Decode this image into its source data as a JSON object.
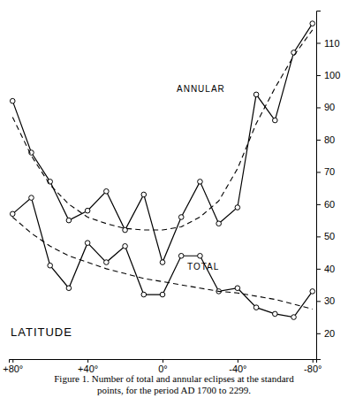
{
  "chart_data": {
    "type": "line",
    "title": "Figure 1. Number of total and annular eclipses at the standard points, for the period AD 1700 to 2299.",
    "x_label": "LATITUDE",
    "x": [
      80,
      70,
      60,
      50,
      40,
      30,
      20,
      10,
      0,
      -10,
      -20,
      -30,
      -40,
      -50,
      -60,
      -70,
      -80
    ],
    "xlim": [
      82,
      -82
    ],
    "xticks": [
      {
        "value": 80,
        "label": "+80°"
      },
      {
        "value": 40,
        "label": "+40°"
      },
      {
        "value": 0,
        "label": "0°"
      },
      {
        "value": -40,
        "label": "-40°"
      },
      {
        "value": -80,
        "label": "-80°"
      }
    ],
    "ylim": [
      12,
      120
    ],
    "yticks": [
      20,
      30,
      40,
      50,
      60,
      70,
      80,
      90,
      100,
      110
    ],
    "grid": false,
    "series": [
      {
        "name": "ANNULAR",
        "color": "#000000",
        "marker": "circle",
        "line_style": "solid",
        "values": [
          92,
          76,
          67,
          55,
          58,
          64,
          52,
          63,
          42,
          56,
          67,
          54,
          59,
          94,
          86,
          107,
          116
        ]
      },
      {
        "name": "TOTAL",
        "color": "#000000",
        "marker": "circle",
        "line_style": "solid",
        "values": [
          57,
          62,
          41,
          34,
          48,
          42,
          47,
          32,
          32,
          44,
          44,
          33,
          34,
          28,
          26,
          25,
          33
        ]
      },
      {
        "color": "#000000",
        "marker": "none",
        "line_style": "dashed",
        "values": [
          87,
          75,
          66,
          60,
          56,
          54,
          52.5,
          52,
          52,
          53,
          56,
          61,
          71,
          85,
          96,
          106,
          114
        ]
      },
      {
        "color": "#000000",
        "marker": "none",
        "line_style": "dashed",
        "values": [
          56,
          51,
          47,
          44,
          42,
          40,
          38.5,
          37,
          36,
          35,
          34,
          33,
          32.5,
          31.5,
          30.5,
          29,
          27.5
        ]
      }
    ]
  }
}
